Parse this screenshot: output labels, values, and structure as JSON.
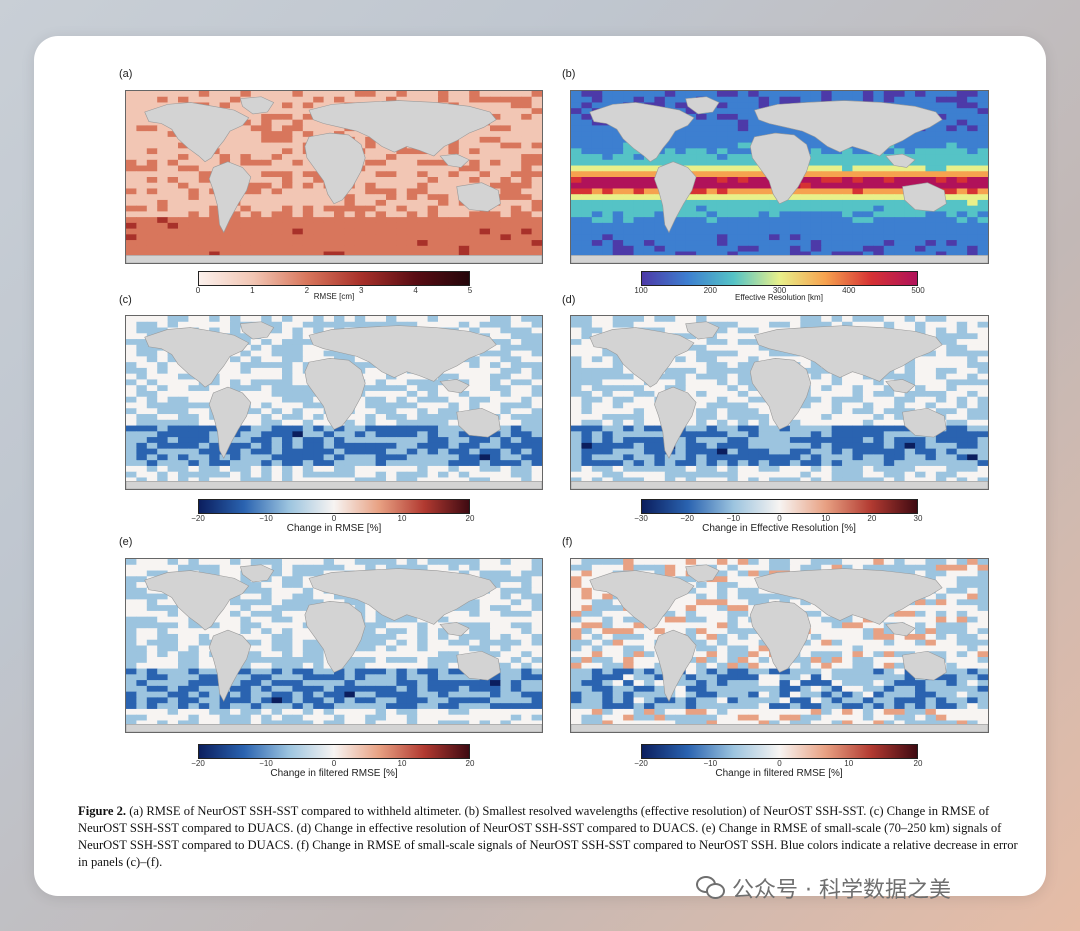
{
  "figure": {
    "panels": [
      {
        "id": "a",
        "label": "(a)",
        "cmap": "reds",
        "colorbar": {
          "label": "RMSE [cm]",
          "ticks": [
            "0",
            "1",
            "2",
            "3",
            "4",
            "5"
          ]
        }
      },
      {
        "id": "b",
        "label": "(b)",
        "cmap": "spectral",
        "colorbar": {
          "label": "Effective Resolution [km]",
          "ticks": [
            "100",
            "200",
            "300",
            "400",
            "500"
          ]
        }
      },
      {
        "id": "c",
        "label": "(c)",
        "cmap": "diverging",
        "colorbar": {
          "label": "Change in RMSE [%]",
          "ticks": [
            "−20",
            "−10",
            "0",
            "10",
            "20"
          ]
        }
      },
      {
        "id": "d",
        "label": "(d)",
        "cmap": "diverging",
        "colorbar": {
          "label": "Change in Effective Resolution [%]",
          "ticks": [
            "−30",
            "−20",
            "−10",
            "0",
            "10",
            "20",
            "30"
          ]
        }
      },
      {
        "id": "e",
        "label": "(e)",
        "cmap": "diverging",
        "colorbar": {
          "label": "Change in filtered RMSE [%]",
          "ticks": [
            "−20",
            "−10",
            "0",
            "10",
            "20"
          ]
        }
      },
      {
        "id": "f",
        "label": "(f)",
        "cmap": "diverging",
        "colorbar": {
          "label": "Change in filtered RMSE [%]",
          "ticks": [
            "−20",
            "−10",
            "0",
            "10",
            "20"
          ]
        }
      }
    ],
    "caption": {
      "figure_label": "Figure 2.",
      "text": "(a) RMSE of NeurOST SSH-SST compared to withheld altimeter. (b) Smallest resolved wavelengths (effective resolution) of NeurOST SSH-SST. (c) Change in RMSE of NeurOST SSH-SST compared to DUACS. (d) Change in effective resolution of NeurOST SSH-SST compared to DUACS. (e) Change in RMSE of small-scale (70–250 km) signals of NeurOST SSH-SST compared to DUACS. (f) Change in RMSE of small-scale signals of NeurOST SSH-SST compared to NeurOST SSH. Blue colors indicate a relative decrease in error in panels (c)–(f)."
    },
    "colors": {
      "land": "#d3d3d3",
      "reds": [
        "#fbf0ec",
        "#f2c6b4",
        "#d8765c",
        "#a8312a",
        "#5a0d14",
        "#24050a"
      ],
      "spectral": [
        "#4d3aa8",
        "#3d7fd0",
        "#55c3c6",
        "#e8f08a",
        "#f6a24f",
        "#d63234",
        "#b0125a"
      ],
      "diverging": [
        "#0b1e5e",
        "#2a63b0",
        "#9cc4df",
        "#f7f4f2",
        "#e8a183",
        "#b23a31",
        "#3f0a12"
      ]
    }
  },
  "watermark": {
    "text": "公众号 · 科学数据之美",
    "icon": "wechat-icon"
  }
}
